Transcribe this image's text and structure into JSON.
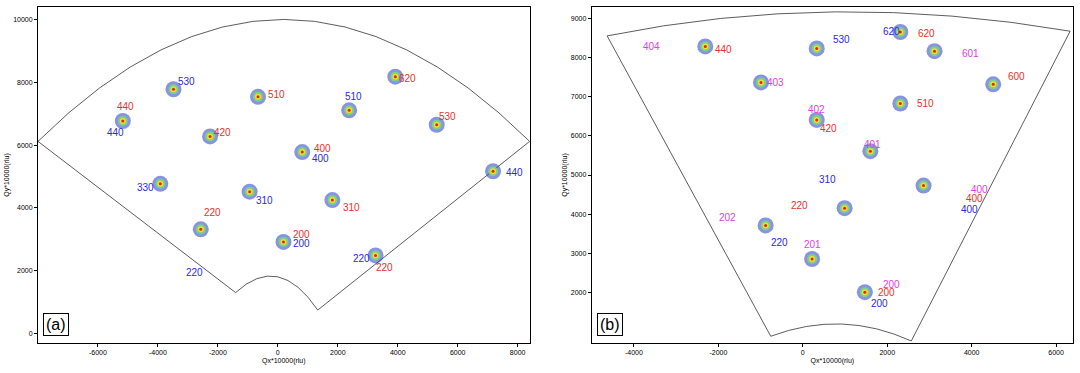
{
  "chart_data": [
    {
      "type": "scatter",
      "title": "(a)",
      "x_label": "Qx*10000(rlu)",
      "y_label": "Qy*10000(rlu)",
      "xlim": [
        -8000,
        8400
      ],
      "ylim": [
        -300,
        10400
      ],
      "xticks": [
        -6000,
        -4000,
        -2000,
        0,
        2000,
        4000,
        6000,
        8000
      ],
      "yticks": [
        0,
        2000,
        4000,
        6000,
        8000,
        10000
      ],
      "grid": false,
      "x": [
        -2570,
        190,
        815,
        1820,
        -940,
        -660,
        2380,
        -5170,
        -3480,
        -2260,
        -3920,
        3260,
        5300,
        7180,
        3920
      ],
      "y": [
        3320,
        2920,
        5780,
        4250,
        4520,
        7540,
        7110,
        6770,
        7780,
        6280,
        4770,
        2490,
        6650,
        5170,
        8180
      ],
      "annotations": [
        {
          "text": "440",
          "x": -5080,
          "y": 7230,
          "color": "#e8302a"
        },
        {
          "text": "440",
          "x": -5420,
          "y": 6400,
          "color": "#2a2ae0"
        },
        {
          "text": "530",
          "x": -3040,
          "y": 8030,
          "color": "#2a2ae0"
        },
        {
          "text": "510",
          "x": -60,
          "y": 7600,
          "color": "#e8302a"
        },
        {
          "text": "420",
          "x": -1850,
          "y": 6400,
          "color": "#e8302a"
        },
        {
          "text": "510",
          "x": 2540,
          "y": 7540,
          "color": "#2a2ae0"
        },
        {
          "text": "620",
          "x": 4330,
          "y": 8120,
          "color": "#e8302a"
        },
        {
          "text": "530",
          "x": 5670,
          "y": 6920,
          "color": "#e8302a"
        },
        {
          "text": "400",
          "x": 1500,
          "y": 5880,
          "color": "#e8302a"
        },
        {
          "text": "400",
          "x": 1440,
          "y": 5570,
          "color": "#2a2ae0"
        },
        {
          "text": "330",
          "x": -4430,
          "y": 4640,
          "color": "#2a2ae0"
        },
        {
          "text": "310",
          "x": -440,
          "y": 4250,
          "color": "#2a2ae0"
        },
        {
          "text": "310",
          "x": 2450,
          "y": 4000,
          "color": "#e8302a"
        },
        {
          "text": "220",
          "x": -2190,
          "y": 3850,
          "color": "#e8302a"
        },
        {
          "text": "220",
          "x": -2790,
          "y": 1940,
          "color": "#2a2ae0"
        },
        {
          "text": "200",
          "x": 780,
          "y": 3170,
          "color": "#e8302a"
        },
        {
          "text": "200",
          "x": 780,
          "y": 2860,
          "color": "#2a2ae0"
        },
        {
          "text": "220",
          "x": 2790,
          "y": 2400,
          "color": "#2a2ae0"
        },
        {
          "text": "220",
          "x": 3570,
          "y": 2090,
          "color": "#e8302a"
        },
        {
          "text": "440",
          "x": 7900,
          "y": 5140,
          "color": "#2a2ae0"
        }
      ]
    },
    {
      "type": "scatter",
      "title": "(b)",
      "x_label": "Qx*10000(rlu)",
      "y_label": "Qy*10000(rlu)",
      "xlim": [
        -5000,
        6400
      ],
      "ylim": [
        700,
        9300
      ],
      "xticks": [
        -4000,
        -2000,
        0,
        2000,
        4000,
        6000
      ],
      "yticks": [
        2000,
        3000,
        4000,
        5000,
        6000,
        7000,
        8000,
        9000
      ],
      "grid": false,
      "x": [
        -880,
        990,
        2860,
        2310,
        330,
        -2310,
        1470,
        220,
        1600,
        330,
        -990,
        3120,
        4510,
        2310
      ],
      "y": [
        3710,
        4150,
        4730,
        6830,
        8240,
        8290,
        2000,
        2850,
        5610,
        6410,
        7370,
        8170,
        7320,
        8660
      ],
      "annotations": [
        {
          "text": "404",
          "x": -3580,
          "y": 8290,
          "color": "#e040e0"
        },
        {
          "text": "440",
          "x": -1870,
          "y": 8200,
          "color": "#e8302a"
        },
        {
          "text": "530",
          "x": 920,
          "y": 8460,
          "color": "#2a2ae0"
        },
        {
          "text": "620",
          "x": 2090,
          "y": 8680,
          "color": "#2a2ae0"
        },
        {
          "text": "620",
          "x": 2920,
          "y": 8630,
          "color": "#e8302a"
        },
        {
          "text": "601",
          "x": 3980,
          "y": 8100,
          "color": "#e040e0"
        },
        {
          "text": "600",
          "x": 5050,
          "y": 7510,
          "color": "#e8302a"
        },
        {
          "text": "403",
          "x": -640,
          "y": 7370,
          "color": "#e040e0"
        },
        {
          "text": "402",
          "x": 330,
          "y": 6680,
          "color": "#e040e0"
        },
        {
          "text": "420",
          "x": 620,
          "y": 6200,
          "color": "#e8302a"
        },
        {
          "text": "510",
          "x": 2900,
          "y": 6830,
          "color": "#e8302a"
        },
        {
          "text": "401",
          "x": 1650,
          "y": 5780,
          "color": "#e040e0"
        },
        {
          "text": "400",
          "x": 4180,
          "y": 4630,
          "color": "#e040e0"
        },
        {
          "text": "400",
          "x": 4070,
          "y": 4390,
          "color": "#e8302a"
        },
        {
          "text": "400",
          "x": 3960,
          "y": 4120,
          "color": "#2a2ae0"
        },
        {
          "text": "310",
          "x": 590,
          "y": 4880,
          "color": "#2a2ae0"
        },
        {
          "text": "202",
          "x": -1780,
          "y": 3900,
          "color": "#e040e0"
        },
        {
          "text": "220",
          "x": -70,
          "y": 4220,
          "color": "#e8302a"
        },
        {
          "text": "220",
          "x": -550,
          "y": 3270,
          "color": "#2a2ae0"
        },
        {
          "text": "201",
          "x": 240,
          "y": 3220,
          "color": "#e040e0"
        },
        {
          "text": "200",
          "x": 2090,
          "y": 2200,
          "color": "#e040e0"
        },
        {
          "text": "200",
          "x": 1980,
          "y": 1980,
          "color": "#e8302a"
        },
        {
          "text": "200",
          "x": 1820,
          "y": 1710,
          "color": "#2a2ae0"
        }
      ]
    }
  ]
}
